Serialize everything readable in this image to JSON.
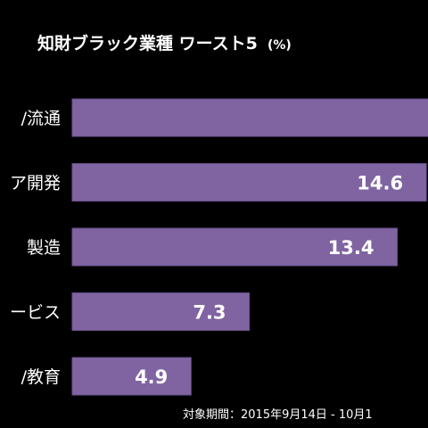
{
  "chart_data": {
    "type": "bar",
    "orientation": "horizontal",
    "title": "知財ブラック業種 ワースト5",
    "title_unit": "(%)",
    "categories": [
      "/流通",
      "ア開発",
      "製造",
      "ービス",
      "/教育"
    ],
    "values": [
      null,
      14.6,
      13.4,
      7.3,
      4.9
    ],
    "value_labels": [
      "",
      "14.6",
      "13.4",
      "7.3",
      "4.9"
    ],
    "xlim": [
      0,
      15.5
    ],
    "grid": false,
    "legend": "none",
    "footnote": "対象期間：2015年9月14日 - 10月1",
    "colors": {
      "background": "#000000",
      "bar": "#8064a2",
      "bar_border": "#6a5190",
      "text": "#ffffff"
    }
  }
}
